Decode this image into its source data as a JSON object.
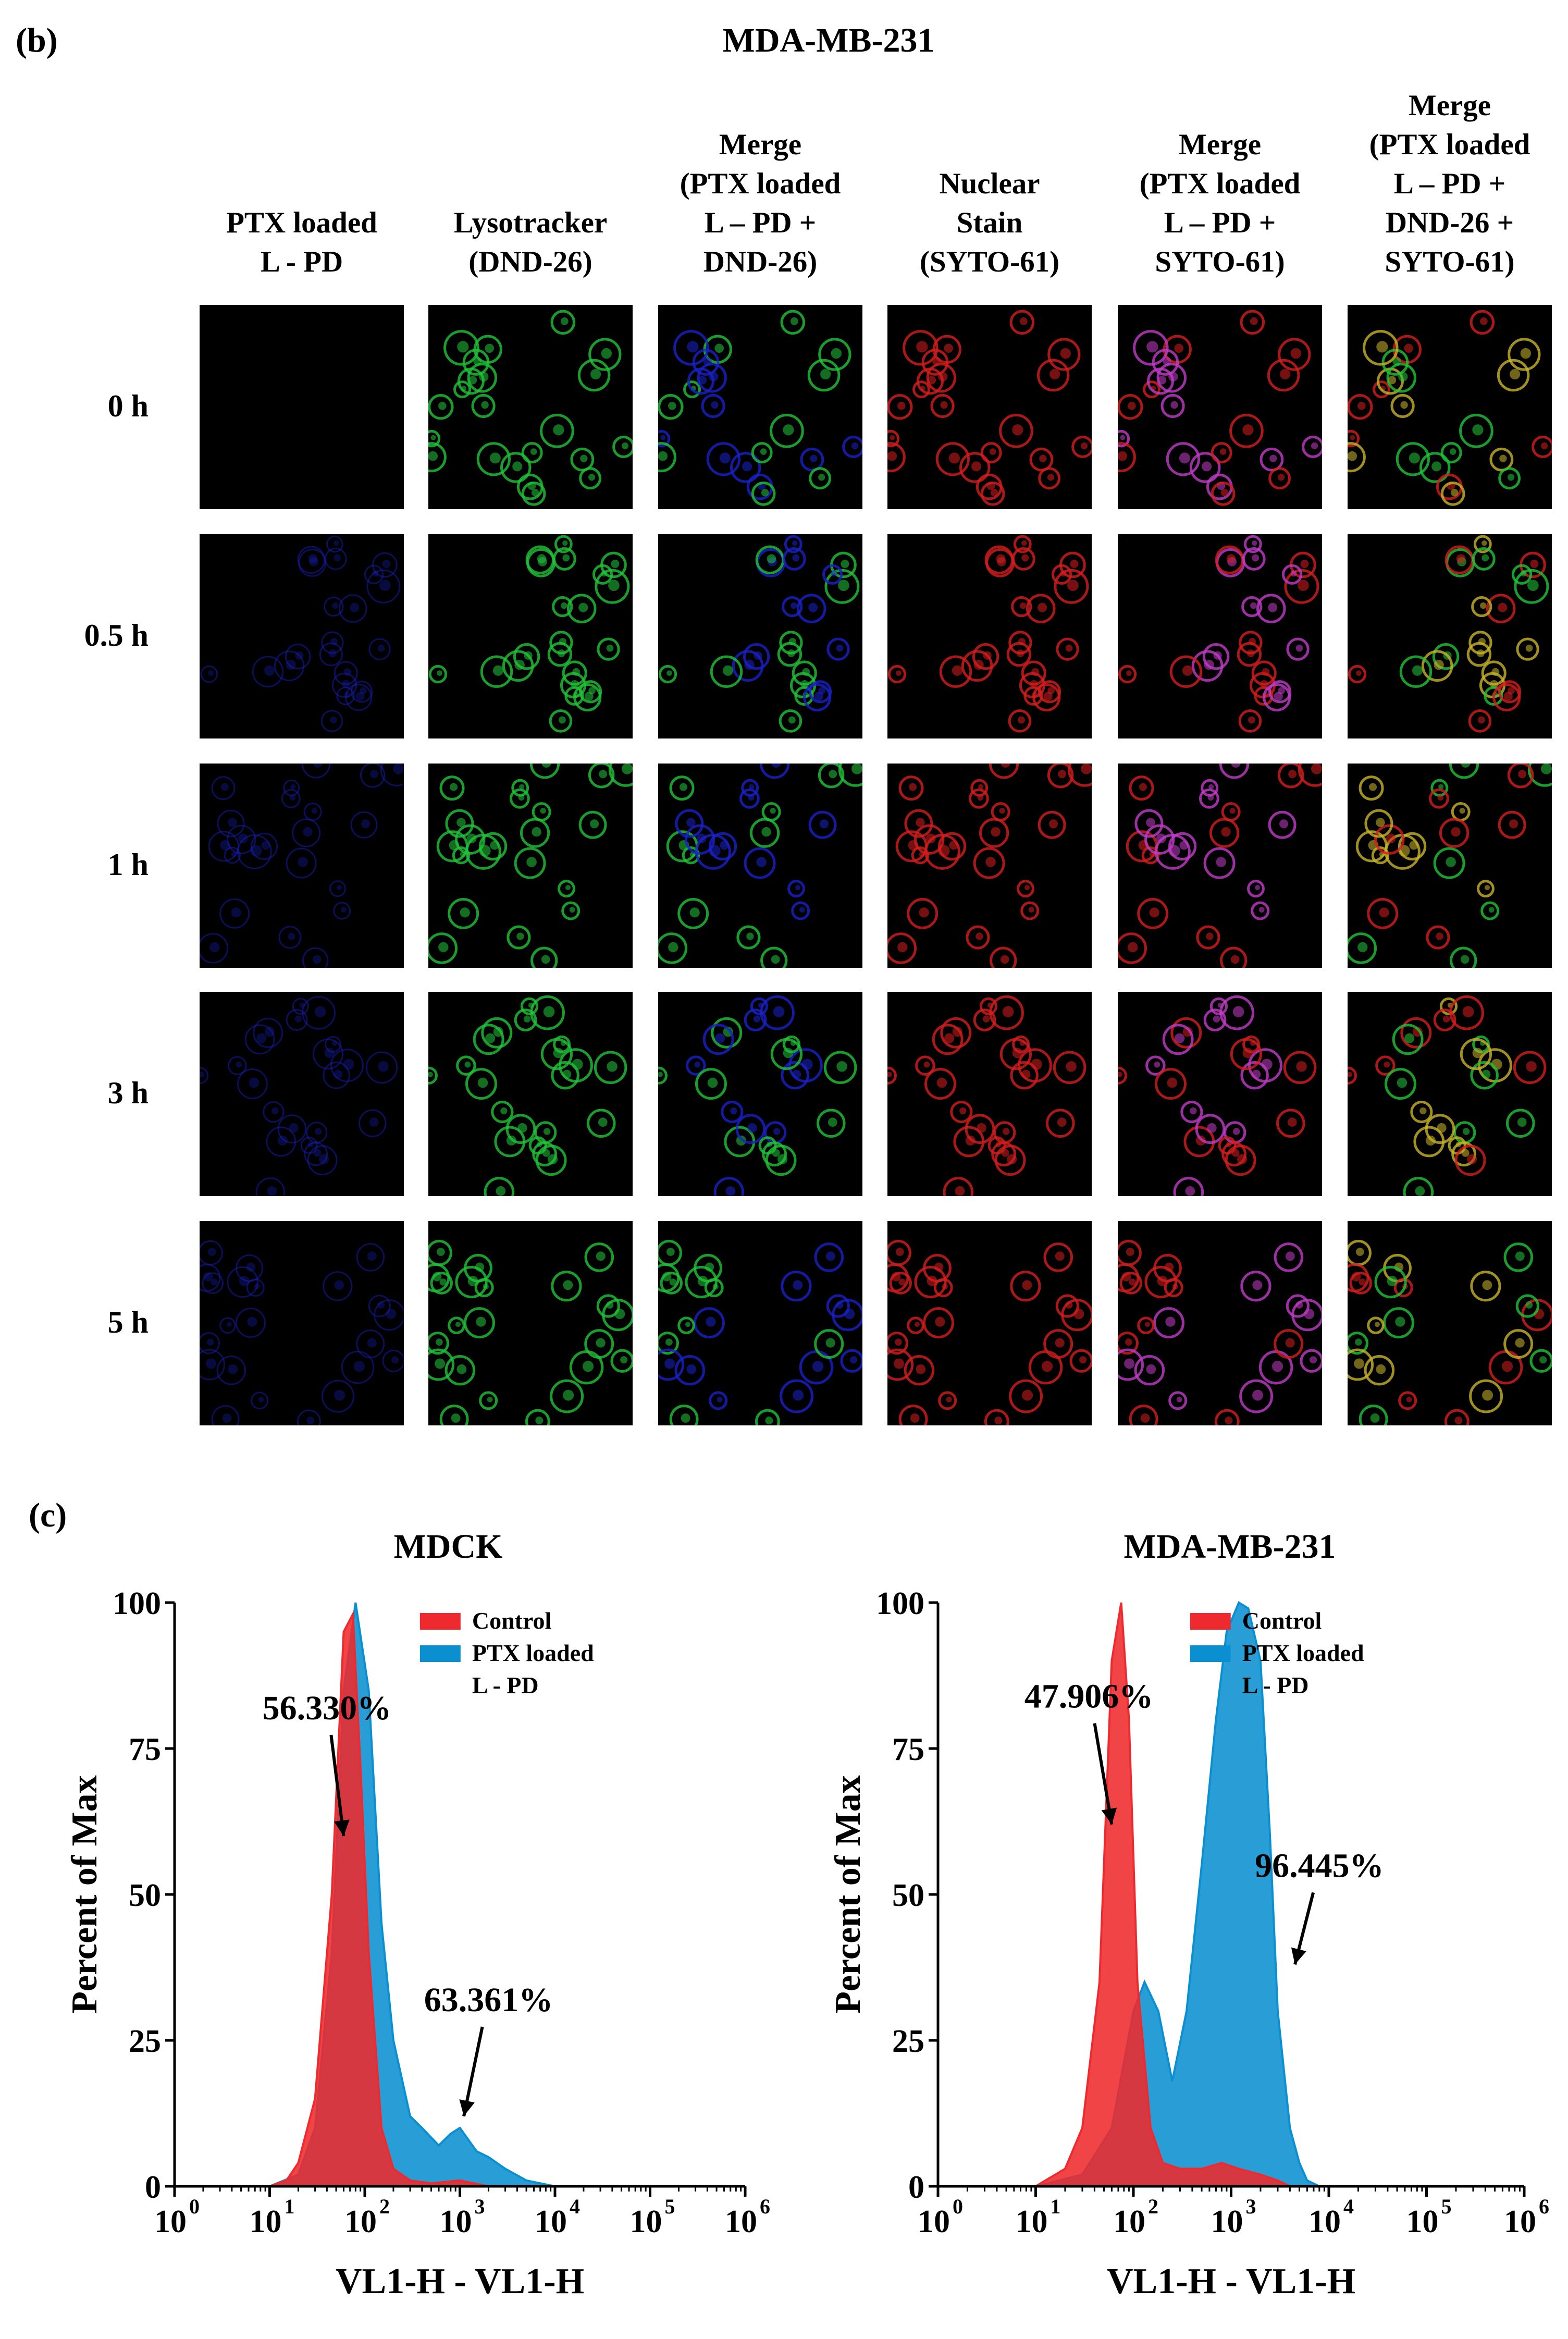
{
  "panel_b": {
    "letter": "(b)",
    "title": "MDA-MB-231",
    "columns": [
      {
        "key": "ptx",
        "label": "PTX loaded\nL - PD"
      },
      {
        "key": "lyso",
        "label": "Lysotracker\n(DND-26)"
      },
      {
        "key": "merge1",
        "label": "Merge\n(PTX loaded\nL – PD +\nDND-26)"
      },
      {
        "key": "nuclear",
        "label": "Nuclear\nStain\n(SYTO-61)"
      },
      {
        "key": "merge2",
        "label": "Merge\n(PTX loaded\nL – PD +\nSYTO-61)"
      },
      {
        "key": "merge3",
        "label": "Merge\n(PTX loaded\nL – PD +\nDND-26 +\nSYTO-61)"
      }
    ],
    "rows": [
      {
        "label": "0 h"
      },
      {
        "label": "0.5 h"
      },
      {
        "label": "1 h"
      },
      {
        "label": "3 h"
      },
      {
        "label": "5 h"
      }
    ],
    "channel_colors": {
      "ptx": "#1a22c8",
      "lyso": "#22c43a",
      "nuclear": "#d41e1e",
      "merge_magenta": "#c23cc8",
      "merge_yellow": "#c8b42a"
    }
  },
  "panel_c": {
    "letter": "(c)"
  },
  "chart_data": [
    {
      "type": "area",
      "title": "MDCK",
      "xlabel": "VL1-H  - VL1-H",
      "ylabel": "Percent of Max",
      "xscale": "log",
      "xlim": [
        1,
        1000000
      ],
      "ylim": [
        0,
        100
      ],
      "x_tick_labels": [
        "10",
        "10",
        "10",
        "10",
        "10",
        "10",
        "10"
      ],
      "x_tick_exponents": [
        "0",
        "1",
        "2",
        "3",
        "4",
        "5",
        "6"
      ],
      "y_ticks": [
        "0",
        "25",
        "50",
        "75",
        "100"
      ],
      "legend_position": "top-right",
      "legend": [
        {
          "name": "Control",
          "color": "#ee2a2e"
        },
        {
          "name": "PTX loaded\nL - PD",
          "color": "#0a8fd0"
        }
      ],
      "series": [
        {
          "name": "PTX loaded L - PD",
          "color": "#0a8fd0",
          "x": [
            10,
            20,
            30,
            45,
            60,
            80,
            110,
            150,
            200,
            300,
            400,
            600,
            800,
            1000,
            1500,
            2000,
            3000,
            5000,
            10000
          ],
          "y": [
            0,
            2,
            10,
            40,
            85,
            100,
            85,
            45,
            25,
            12,
            10,
            7,
            9,
            10,
            6,
            5,
            3,
            1,
            0
          ]
        },
        {
          "name": "Control",
          "color": "#ee2a2e",
          "x": [
            10,
            15,
            20,
            30,
            45,
            60,
            75,
            90,
            110,
            150,
            200,
            300,
            500,
            1000,
            2000
          ],
          "y": [
            0,
            1,
            4,
            15,
            50,
            95,
            98,
            72,
            40,
            10,
            3,
            1,
            0.5,
            1,
            0
          ]
        }
      ],
      "annotations": [
        {
          "text": "56.330%",
          "x": 40,
          "y": 80,
          "arrow_to": [
            60,
            60
          ]
        },
        {
          "text": "63.361%",
          "x": 2000,
          "y": 30,
          "arrow_to": [
            1100,
            12
          ]
        }
      ]
    },
    {
      "type": "area",
      "title": "MDA-MB-231",
      "xlabel": "VL1-H  - VL1-H",
      "ylabel": "Percent of Max",
      "xscale": "log",
      "xlim": [
        1,
        1000000
      ],
      "ylim": [
        0,
        100
      ],
      "x_tick_labels": [
        "10",
        "10",
        "10",
        "10",
        "10",
        "10",
        "10"
      ],
      "x_tick_exponents": [
        "0",
        "1",
        "2",
        "3",
        "4",
        "5",
        "6"
      ],
      "y_ticks": [
        "0",
        "25",
        "50",
        "75",
        "100"
      ],
      "legend_position": "top-right",
      "legend": [
        {
          "name": "Control",
          "color": "#ee2a2e"
        },
        {
          "name": "PTX loaded\nL - PD",
          "color": "#0a8fd0"
        }
      ],
      "series": [
        {
          "name": "PTX loaded L - PD",
          "color": "#0a8fd0",
          "x": [
            10,
            30,
            60,
            100,
            130,
            180,
            250,
            350,
            500,
            700,
            900,
            1200,
            1500,
            2000,
            2500,
            3000,
            4000,
            5000,
            6000,
            8000
          ],
          "y": [
            0,
            2,
            10,
            30,
            35,
            30,
            18,
            30,
            55,
            80,
            95,
            100,
            99,
            90,
            60,
            30,
            10,
            4,
            1,
            0
          ]
        },
        {
          "name": "Control",
          "color": "#ee2a2e",
          "x": [
            10,
            20,
            30,
            45,
            60,
            75,
            90,
            110,
            150,
            200,
            300,
            500,
            800,
            1200,
            2000,
            3000,
            4000
          ],
          "y": [
            0,
            3,
            10,
            35,
            90,
            100,
            80,
            35,
            10,
            4,
            3,
            3,
            4,
            3,
            2,
            1,
            0
          ]
        }
      ],
      "annotations": [
        {
          "text": "47.906%",
          "x": 35,
          "y": 82,
          "arrow_to": [
            60,
            62
          ]
        },
        {
          "text": "96.445%",
          "x": 8000,
          "y": 53,
          "arrow_to": [
            4500,
            38
          ]
        }
      ]
    }
  ]
}
